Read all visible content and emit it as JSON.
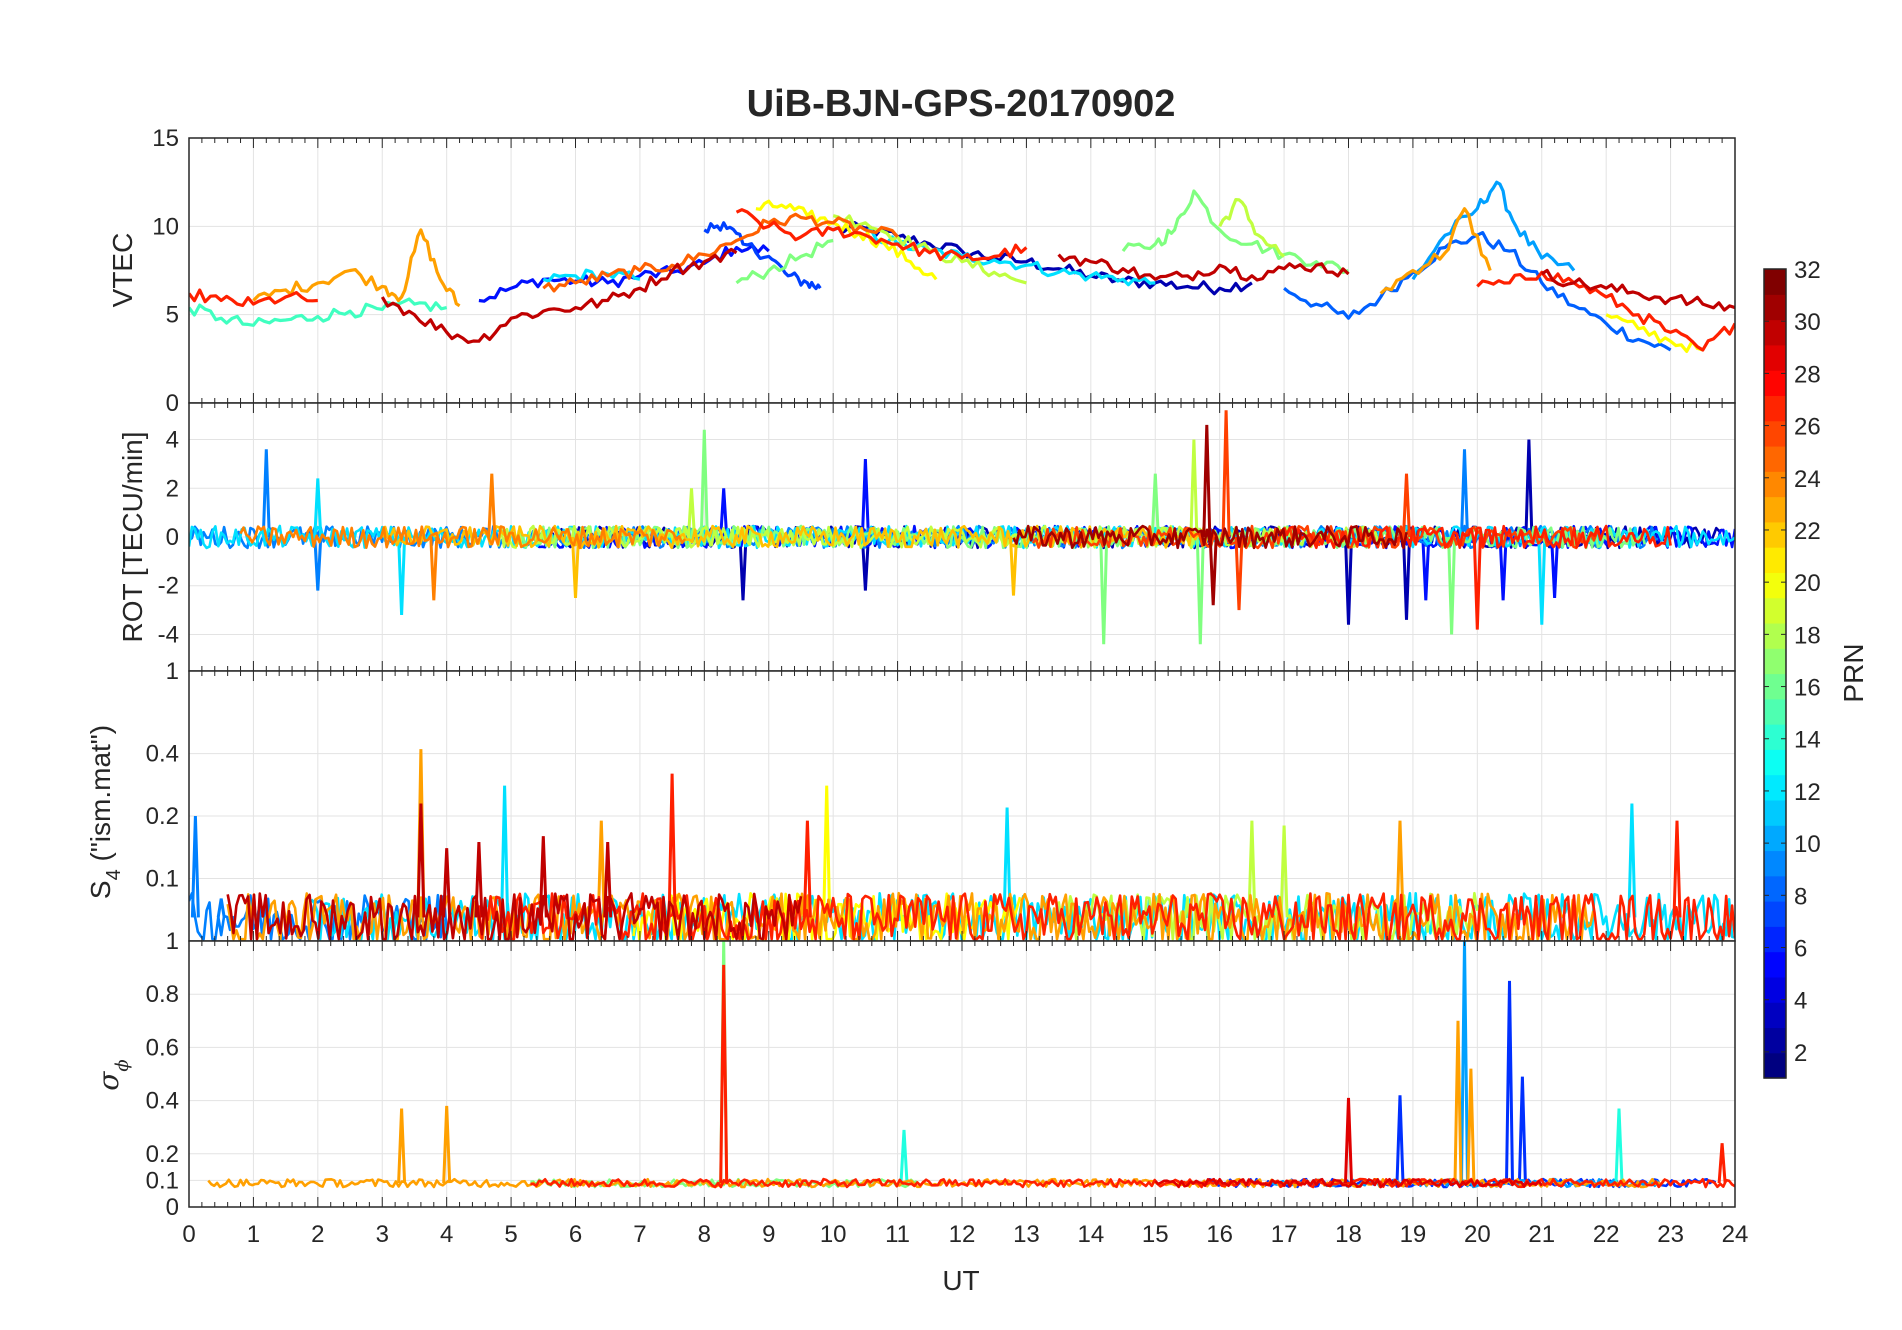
{
  "figure": {
    "title": "UiB-BJN-GPS-20170902",
    "xlabel": "UT",
    "x_ticks": [
      "0",
      "1",
      "2",
      "3",
      "4",
      "5",
      "6",
      "7",
      "8",
      "9",
      "10",
      "11",
      "12",
      "13",
      "14",
      "15",
      "16",
      "17",
      "18",
      "19",
      "20",
      "21",
      "22",
      "23",
      "24"
    ]
  },
  "colorbar": {
    "label": "PRN",
    "colormap": "jet",
    "range": [
      1,
      32
    ],
    "ticks": [
      "2",
      "4",
      "6",
      "8",
      "10",
      "12",
      "14",
      "16",
      "18",
      "20",
      "22",
      "24",
      "26",
      "28",
      "30",
      "32"
    ]
  },
  "panels": {
    "vtec": {
      "ylabel": "VTEC",
      "ticks": [
        "0",
        "5",
        "10",
        "15"
      ]
    },
    "rot": {
      "ylabel": "ROT [TECU/min]",
      "ticks": [
        "-4",
        "-2",
        "0",
        "2",
        "4"
      ]
    },
    "s4": {
      "ylabel_main": "S",
      "ylabel_sub": "4",
      "ylabel_rest": " (\"ism.mat\")",
      "ticks": [
        "0.1",
        "0.2",
        "0.4",
        "1"
      ]
    },
    "sigma": {
      "ylabel_symbol": "σ",
      "ylabel_sub": "ϕ",
      "ticks": [
        "0",
        "0.1",
        "0.2",
        "0.4",
        "0.6",
        "0.8",
        "1"
      ]
    }
  },
  "chart_data": [
    {
      "type": "line",
      "ylabel": "VTEC",
      "xlim": [
        0,
        24
      ],
      "ylim": [
        0,
        15
      ],
      "grid": true,
      "series": [
        {
          "prn": 2,
          "color": "#0000b0",
          "x": [
            10.0,
            10.5,
            11.0,
            11.5,
            12.0,
            12.5,
            13.0,
            13.5,
            14.0,
            14.5,
            15.0,
            15.5,
            16.0,
            16.5
          ],
          "y": [
            9.8,
            9.9,
            9.4,
            9.0,
            8.6,
            8.2,
            8.0,
            7.6,
            7.2,
            6.9,
            6.8,
            6.6,
            6.5,
            6.8
          ]
        },
        {
          "prn": 4,
          "color": "#0010ff",
          "x": [
            4.5,
            5.0,
            5.5,
            6.0,
            6.5,
            7.0,
            7.5,
            8.0,
            8.5,
            9.0
          ],
          "y": [
            5.8,
            6.5,
            7.0,
            6.9,
            6.8,
            7.2,
            7.4,
            7.9,
            8.8,
            8.6
          ]
        },
        {
          "prn": 5,
          "color": "#0040ff",
          "x": [
            8.0,
            8.3,
            8.6,
            9.0,
            9.3,
            9.6,
            9.8
          ],
          "y": [
            9.8,
            10.2,
            9.0,
            8.3,
            7.2,
            6.8,
            6.5
          ]
        },
        {
          "prn": 7,
          "color": "#0060ff",
          "x": [
            17.0,
            17.5,
            18.0,
            18.5,
            19.0,
            19.5,
            20.0,
            20.5,
            21.0,
            21.5,
            22.0,
            22.5,
            23.0
          ],
          "y": [
            6.5,
            5.6,
            4.8,
            6.0,
            7.4,
            8.8,
            9.5,
            8.6,
            6.8,
            5.5,
            4.5,
            3.6,
            3.0
          ]
        },
        {
          "prn": 10,
          "color": "#00a0ff",
          "x": [
            19.0,
            19.5,
            20.0,
            20.3,
            20.6,
            21.0,
            21.5
          ],
          "y": [
            7.0,
            9.5,
            11.0,
            12.5,
            10.0,
            8.2,
            7.5
          ]
        },
        {
          "prn": 12,
          "color": "#00e0ff",
          "x": [
            5.5,
            6.0,
            6.5,
            7.0,
            10.5,
            11.0,
            11.5,
            12.0,
            12.5,
            13.0,
            13.5,
            14.0,
            14.5,
            15.0
          ],
          "y": [
            7.0,
            7.2,
            7.3,
            7.0,
            9.7,
            9.0,
            8.6,
            8.3,
            8.1,
            7.8,
            7.4,
            7.2,
            7.0,
            6.8
          ]
        },
        {
          "prn": 14,
          "color": "#40ffc0",
          "x": [
            0.0,
            0.5,
            1.0,
            1.5,
            2.0,
            2.5,
            3.0,
            3.5,
            4.0
          ],
          "y": [
            5.4,
            4.8,
            4.4,
            4.7,
            4.9,
            5.2,
            5.3,
            5.6,
            5.4
          ]
        },
        {
          "prn": 16,
          "color": "#80ff80",
          "x": [
            8.5,
            9.0,
            9.5,
            10.0,
            14.5,
            15.0,
            15.3,
            15.6,
            16.0,
            16.5,
            17.0,
            17.5,
            18.0
          ],
          "y": [
            6.8,
            7.5,
            8.3,
            9.2,
            8.6,
            9.0,
            9.8,
            12.0,
            9.8,
            9.0,
            8.4,
            8.0,
            7.5
          ]
        },
        {
          "prn": 18,
          "color": "#c0ff40",
          "x": [
            10.0,
            10.5,
            11.0,
            11.5,
            12.0,
            12.5,
            13.0,
            16.0,
            16.3,
            16.6,
            17.0
          ],
          "y": [
            10.6,
            10.2,
            9.4,
            8.6,
            8.0,
            7.4,
            6.8,
            10.0,
            11.5,
            9.5,
            8.3
          ]
        },
        {
          "prn": 20,
          "color": "#ffff00",
          "x": [
            8.8,
            9.2,
            9.6,
            10.0,
            10.4,
            10.8,
            11.2,
            11.6,
            22.0,
            22.5,
            23.0,
            23.5
          ],
          "y": [
            11.0,
            11.2,
            10.6,
            10.2,
            9.6,
            9.0,
            8.0,
            7.0,
            5.0,
            4.2,
            3.5,
            3.0
          ]
        },
        {
          "prn": 23,
          "color": "#ffa000",
          "x": [
            1.0,
            1.5,
            2.0,
            2.5,
            3.0,
            3.3,
            3.6,
            3.9,
            4.2,
            18.5,
            19.0,
            19.5,
            19.8,
            20.2
          ],
          "y": [
            5.8,
            6.4,
            6.8,
            7.5,
            6.6,
            6.0,
            9.8,
            7.0,
            5.5,
            6.2,
            7.5,
            8.5,
            11.0,
            7.5
          ]
        },
        {
          "prn": 25,
          "color": "#ff6000",
          "x": [
            5.5,
            6.0,
            6.5,
            7.0,
            7.5,
            8.0,
            8.5,
            9.0,
            9.5,
            10.0,
            10.5,
            11.0
          ],
          "y": [
            6.5,
            6.8,
            7.2,
            7.5,
            7.8,
            8.4,
            9.2,
            10.2,
            10.5,
            10.2,
            9.8,
            9.4
          ]
        },
        {
          "prn": 27,
          "color": "#ff2000",
          "x": [
            0.0,
            0.5,
            1.0,
            1.5,
            2.0,
            8.5,
            9.0,
            9.5,
            10.0,
            10.5,
            11.0,
            11.5,
            12.0,
            12.5,
            13.0,
            20.0,
            20.5,
            21.0,
            21.5,
            22.0,
            22.5,
            23.0,
            23.5,
            24.0
          ],
          "y": [
            6.2,
            5.8,
            5.6,
            6.0,
            5.8,
            10.8,
            10.0,
            9.4,
            9.8,
            9.5,
            9.0,
            8.5,
            8.2,
            8.3,
            8.8,
            6.6,
            6.8,
            7.4,
            6.8,
            6.0,
            5.0,
            4.0,
            3.0,
            4.5
          ]
        },
        {
          "prn": 30,
          "color": "#c00000",
          "x": [
            3.0,
            3.5,
            4.0,
            4.5,
            5.0,
            5.5,
            6.0,
            6.5,
            7.0,
            7.5,
            8.0,
            8.5,
            13.5,
            14.0,
            14.5,
            15.0,
            15.5,
            16.0,
            16.5,
            17.0,
            17.5,
            18.0,
            21.0,
            21.5,
            22.0,
            22.5,
            23.0,
            23.5,
            24.0
          ],
          "y": [
            6.0,
            5.0,
            4.0,
            3.5,
            4.8,
            5.2,
            5.4,
            5.8,
            6.5,
            7.5,
            8.0,
            8.5,
            8.4,
            8.0,
            7.6,
            7.0,
            7.2,
            7.8,
            7.2,
            7.6,
            7.8,
            7.3,
            7.3,
            6.8,
            6.5,
            6.2,
            5.9,
            5.6,
            5.4
          ]
        }
      ]
    },
    {
      "type": "line",
      "ylabel": "ROT [TECU/min]",
      "xlim": [
        0,
        24
      ],
      "ylim": [
        -5.5,
        5.5
      ],
      "grid": true,
      "series": [
        {
          "prn": 2,
          "color": "#0000b0",
          "x": [
            8.6,
            10.5,
            18.0,
            18.9,
            20.8
          ],
          "y": [
            -2.6,
            -2.2,
            -3.6,
            -3.4,
            4.0
          ]
        },
        {
          "prn": 4,
          "color": "#0010ff",
          "x": [
            8.3,
            10.5,
            19.2,
            20.4,
            21.2
          ],
          "y": [
            2.0,
            3.2,
            -2.6,
            -2.6,
            -2.5
          ]
        },
        {
          "prn": 8,
          "color": "#0080ff",
          "x": [
            1.2,
            2.0,
            19.8
          ],
          "y": [
            3.6,
            -2.2,
            3.6
          ]
        },
        {
          "prn": 12,
          "color": "#00e0ff",
          "x": [
            2.0,
            3.3,
            21.0
          ],
          "y": [
            2.4,
            -3.2,
            -3.6
          ]
        },
        {
          "prn": 16,
          "color": "#80ff80",
          "x": [
            8.0,
            14.2,
            15.0,
            15.7,
            19.6
          ],
          "y": [
            4.4,
            -4.4,
            2.6,
            -4.4,
            -4.0
          ]
        },
        {
          "prn": 18,
          "color": "#c0ff40",
          "x": [
            7.8,
            15.6
          ],
          "y": [
            2.0,
            4.0
          ]
        },
        {
          "prn": 22,
          "color": "#ffc000",
          "x": [
            6.0,
            12.8
          ],
          "y": [
            -2.5,
            -2.4
          ]
        },
        {
          "prn": 24,
          "color": "#ff8000",
          "x": [
            3.8,
            4.7
          ],
          "y": [
            -2.6,
            2.6
          ]
        },
        {
          "prn": 26,
          "color": "#ff4000",
          "x": [
            16.1,
            16.3,
            18.9
          ],
          "y": [
            5.2,
            -3.0,
            2.6
          ]
        },
        {
          "prn": 28,
          "color": "#ff2000",
          "x": [
            20.0
          ],
          "y": [
            -3.8
          ]
        },
        {
          "prn": 31,
          "color": "#a00000",
          "x": [
            15.8,
            15.9
          ],
          "y": [
            4.6,
            -2.8
          ]
        }
      ]
    },
    {
      "type": "line",
      "ylabel": "S4 (\"ism.mat\")",
      "xlim": [
        0,
        24
      ],
      "ylim": [
        0.05,
        1
      ],
      "scale": "log",
      "grid": true,
      "series": [
        {
          "prn": 8,
          "color": "#0080ff",
          "x": [
            0.1,
            0.5,
            1.0
          ],
          "y": [
            0.2,
            0.08,
            0.07
          ]
        },
        {
          "prn": 12,
          "color": "#00e0ff",
          "x": [
            4.9,
            12.7,
            22.4
          ],
          "y": [
            0.28,
            0.22,
            0.23
          ]
        },
        {
          "prn": 18,
          "color": "#c0ff40",
          "x": [
            16.5,
            17.0
          ],
          "y": [
            0.19,
            0.18
          ]
        },
        {
          "prn": 20,
          "color": "#ffff00",
          "x": [
            9.9
          ],
          "y": [
            0.28
          ]
        },
        {
          "prn": 23,
          "color": "#ffa000",
          "x": [
            3.6,
            6.4,
            18.8
          ],
          "y": [
            0.42,
            0.19,
            0.19
          ]
        },
        {
          "prn": 27,
          "color": "#ff2000",
          "x": [
            7.5,
            9.6,
            23.1
          ],
          "y": [
            0.32,
            0.19,
            0.19
          ]
        },
        {
          "prn": 30,
          "color": "#c00000",
          "x": [
            3.6,
            4.0,
            4.5,
            5.5,
            6.5
          ],
          "y": [
            0.23,
            0.14,
            0.15,
            0.16,
            0.15
          ]
        }
      ]
    },
    {
      "type": "line",
      "ylabel": "σ ϕ",
      "xlim": [
        0,
        24
      ],
      "ylim": [
        0,
        1
      ],
      "grid": true,
      "series": [
        {
          "prn": 3,
          "color": "#0030ff",
          "x": [
            18.8,
            20.5,
            20.7
          ],
          "y": [
            0.42,
            0.85,
            0.49
          ]
        },
        {
          "prn": 10,
          "color": "#00a0ff",
          "x": [
            19.8
          ],
          "y": [
            1.0
          ]
        },
        {
          "prn": 13,
          "color": "#20ffe0",
          "x": [
            22.2,
            11.1
          ],
          "y": [
            0.37,
            0.29
          ]
        },
        {
          "prn": 16,
          "color": "#80ff80",
          "x": [
            8.3
          ],
          "y": [
            1.0
          ]
        },
        {
          "prn": 23,
          "color": "#ffa000",
          "x": [
            3.3,
            4.0,
            19.7,
            19.9
          ],
          "y": [
            0.37,
            0.38,
            0.7,
            0.52
          ]
        },
        {
          "prn": 27,
          "color": "#ff2000",
          "x": [
            8.3,
            23.8
          ],
          "y": [
            0.91,
            0.24
          ]
        },
        {
          "prn": 29,
          "color": "#e00000",
          "x": [
            18.0
          ],
          "y": [
            0.41
          ]
        }
      ]
    }
  ]
}
